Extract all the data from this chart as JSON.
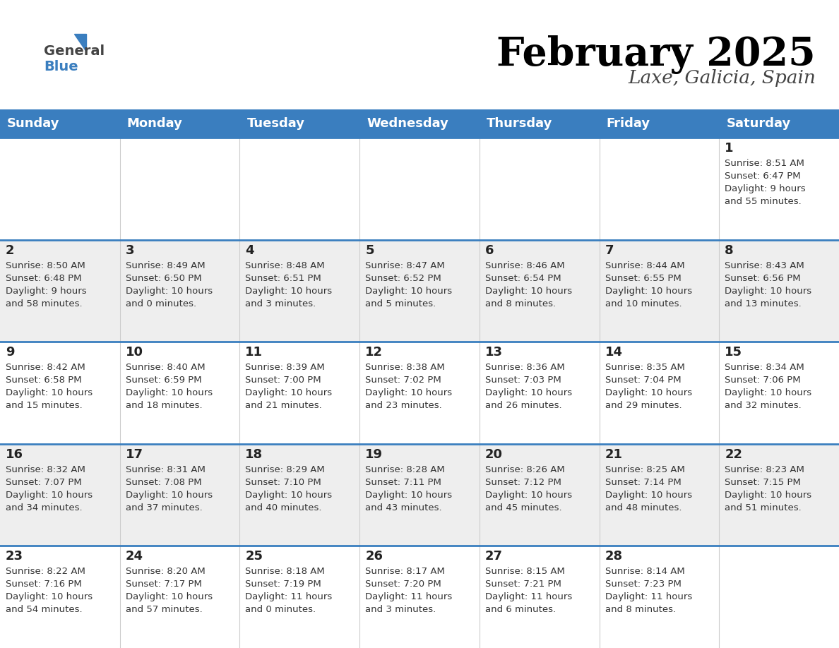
{
  "title": "February 2025",
  "subtitle": "Laxe, Galicia, Spain",
  "header_bg": "#3A7EBF",
  "header_text_color": "#FFFFFF",
  "day_names": [
    "Sunday",
    "Monday",
    "Tuesday",
    "Wednesday",
    "Thursday",
    "Friday",
    "Saturday"
  ],
  "row_bg_colors": [
    "#FFFFFF",
    "#EEEEEE",
    "#FFFFFF",
    "#EEEEEE",
    "#FFFFFF"
  ],
  "separator_color": "#3A7EBF",
  "text_color": "#333333",
  "date_color": "#222222",
  "days": [
    {
      "date": 1,
      "col": 6,
      "row": 0,
      "sunrise": "8:51 AM",
      "sunset": "6:47 PM",
      "daylight_line1": "Daylight: 9 hours",
      "daylight_line2": "and 55 minutes."
    },
    {
      "date": 2,
      "col": 0,
      "row": 1,
      "sunrise": "8:50 AM",
      "sunset": "6:48 PM",
      "daylight_line1": "Daylight: 9 hours",
      "daylight_line2": "and 58 minutes."
    },
    {
      "date": 3,
      "col": 1,
      "row": 1,
      "sunrise": "8:49 AM",
      "sunset": "6:50 PM",
      "daylight_line1": "Daylight: 10 hours",
      "daylight_line2": "and 0 minutes."
    },
    {
      "date": 4,
      "col": 2,
      "row": 1,
      "sunrise": "8:48 AM",
      "sunset": "6:51 PM",
      "daylight_line1": "Daylight: 10 hours",
      "daylight_line2": "and 3 minutes."
    },
    {
      "date": 5,
      "col": 3,
      "row": 1,
      "sunrise": "8:47 AM",
      "sunset": "6:52 PM",
      "daylight_line1": "Daylight: 10 hours",
      "daylight_line2": "and 5 minutes."
    },
    {
      "date": 6,
      "col": 4,
      "row": 1,
      "sunrise": "8:46 AM",
      "sunset": "6:54 PM",
      "daylight_line1": "Daylight: 10 hours",
      "daylight_line2": "and 8 minutes."
    },
    {
      "date": 7,
      "col": 5,
      "row": 1,
      "sunrise": "8:44 AM",
      "sunset": "6:55 PM",
      "daylight_line1": "Daylight: 10 hours",
      "daylight_line2": "and 10 minutes."
    },
    {
      "date": 8,
      "col": 6,
      "row": 1,
      "sunrise": "8:43 AM",
      "sunset": "6:56 PM",
      "daylight_line1": "Daylight: 10 hours",
      "daylight_line2": "and 13 minutes."
    },
    {
      "date": 9,
      "col": 0,
      "row": 2,
      "sunrise": "8:42 AM",
      "sunset": "6:58 PM",
      "daylight_line1": "Daylight: 10 hours",
      "daylight_line2": "and 15 minutes."
    },
    {
      "date": 10,
      "col": 1,
      "row": 2,
      "sunrise": "8:40 AM",
      "sunset": "6:59 PM",
      "daylight_line1": "Daylight: 10 hours",
      "daylight_line2": "and 18 minutes."
    },
    {
      "date": 11,
      "col": 2,
      "row": 2,
      "sunrise": "8:39 AM",
      "sunset": "7:00 PM",
      "daylight_line1": "Daylight: 10 hours",
      "daylight_line2": "and 21 minutes."
    },
    {
      "date": 12,
      "col": 3,
      "row": 2,
      "sunrise": "8:38 AM",
      "sunset": "7:02 PM",
      "daylight_line1": "Daylight: 10 hours",
      "daylight_line2": "and 23 minutes."
    },
    {
      "date": 13,
      "col": 4,
      "row": 2,
      "sunrise": "8:36 AM",
      "sunset": "7:03 PM",
      "daylight_line1": "Daylight: 10 hours",
      "daylight_line2": "and 26 minutes."
    },
    {
      "date": 14,
      "col": 5,
      "row": 2,
      "sunrise": "8:35 AM",
      "sunset": "7:04 PM",
      "daylight_line1": "Daylight: 10 hours",
      "daylight_line2": "and 29 minutes."
    },
    {
      "date": 15,
      "col": 6,
      "row": 2,
      "sunrise": "8:34 AM",
      "sunset": "7:06 PM",
      "daylight_line1": "Daylight: 10 hours",
      "daylight_line2": "and 32 minutes."
    },
    {
      "date": 16,
      "col": 0,
      "row": 3,
      "sunrise": "8:32 AM",
      "sunset": "7:07 PM",
      "daylight_line1": "Daylight: 10 hours",
      "daylight_line2": "and 34 minutes."
    },
    {
      "date": 17,
      "col": 1,
      "row": 3,
      "sunrise": "8:31 AM",
      "sunset": "7:08 PM",
      "daylight_line1": "Daylight: 10 hours",
      "daylight_line2": "and 37 minutes."
    },
    {
      "date": 18,
      "col": 2,
      "row": 3,
      "sunrise": "8:29 AM",
      "sunset": "7:10 PM",
      "daylight_line1": "Daylight: 10 hours",
      "daylight_line2": "and 40 minutes."
    },
    {
      "date": 19,
      "col": 3,
      "row": 3,
      "sunrise": "8:28 AM",
      "sunset": "7:11 PM",
      "daylight_line1": "Daylight: 10 hours",
      "daylight_line2": "and 43 minutes."
    },
    {
      "date": 20,
      "col": 4,
      "row": 3,
      "sunrise": "8:26 AM",
      "sunset": "7:12 PM",
      "daylight_line1": "Daylight: 10 hours",
      "daylight_line2": "and 45 minutes."
    },
    {
      "date": 21,
      "col": 5,
      "row": 3,
      "sunrise": "8:25 AM",
      "sunset": "7:14 PM",
      "daylight_line1": "Daylight: 10 hours",
      "daylight_line2": "and 48 minutes."
    },
    {
      "date": 22,
      "col": 6,
      "row": 3,
      "sunrise": "8:23 AM",
      "sunset": "7:15 PM",
      "daylight_line1": "Daylight: 10 hours",
      "daylight_line2": "and 51 minutes."
    },
    {
      "date": 23,
      "col": 0,
      "row": 4,
      "sunrise": "8:22 AM",
      "sunset": "7:16 PM",
      "daylight_line1": "Daylight: 10 hours",
      "daylight_line2": "and 54 minutes."
    },
    {
      "date": 24,
      "col": 1,
      "row": 4,
      "sunrise": "8:20 AM",
      "sunset": "7:17 PM",
      "daylight_line1": "Daylight: 10 hours",
      "daylight_line2": "and 57 minutes."
    },
    {
      "date": 25,
      "col": 2,
      "row": 4,
      "sunrise": "8:18 AM",
      "sunset": "7:19 PM",
      "daylight_line1": "Daylight: 11 hours",
      "daylight_line2": "and 0 minutes."
    },
    {
      "date": 26,
      "col": 3,
      "row": 4,
      "sunrise": "8:17 AM",
      "sunset": "7:20 PM",
      "daylight_line1": "Daylight: 11 hours",
      "daylight_line2": "and 3 minutes."
    },
    {
      "date": 27,
      "col": 4,
      "row": 4,
      "sunrise": "8:15 AM",
      "sunset": "7:21 PM",
      "daylight_line1": "Daylight: 11 hours",
      "daylight_line2": "and 6 minutes."
    },
    {
      "date": 28,
      "col": 5,
      "row": 4,
      "sunrise": "8:14 AM",
      "sunset": "7:23 PM",
      "daylight_line1": "Daylight: 11 hours",
      "daylight_line2": "and 8 minutes."
    }
  ]
}
